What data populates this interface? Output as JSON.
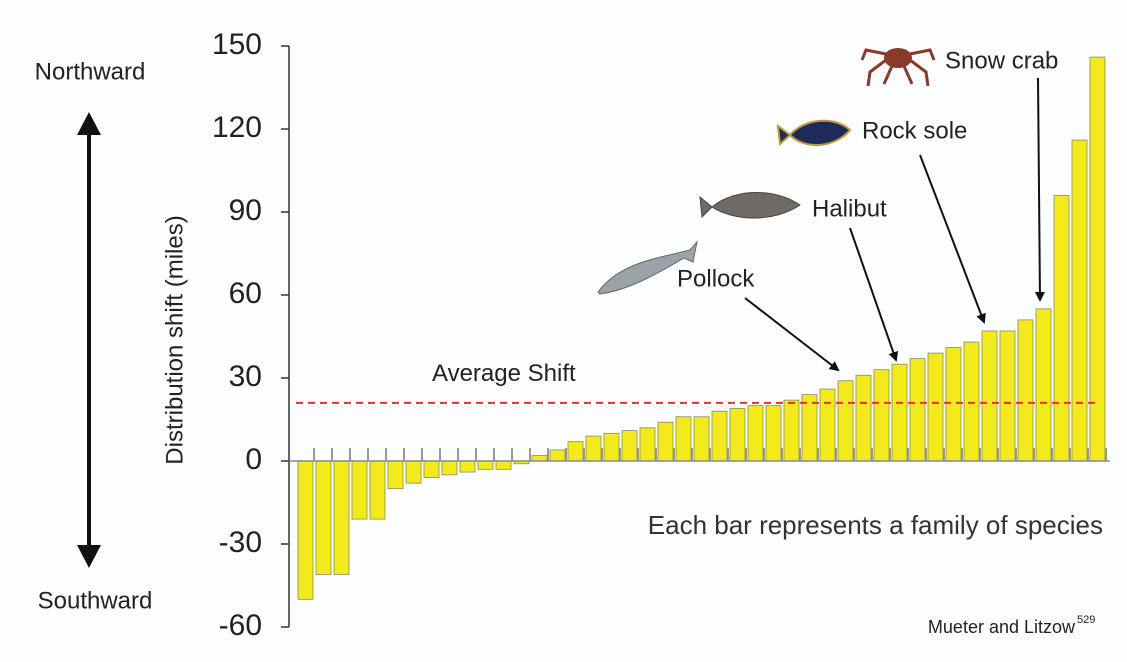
{
  "chart_data": {
    "type": "bar",
    "y_label": "Distribution shift (miles)",
    "top_label": "Northward",
    "bottom_label": "Southward",
    "note": "Each bar represents a family of species",
    "source": "Mueter and Litzow",
    "source_ref": "529",
    "average": {
      "label": "Average Shift",
      "value": 21,
      "color": "#e8302a"
    },
    "annotations": [
      "Pollock",
      "Halibut",
      "Rock sole",
      "Snow crab"
    ],
    "values": [
      -50,
      -41,
      -41,
      -21,
      -21,
      -10,
      -8,
      -6,
      -5,
      -4,
      -3,
      -3,
      -1,
      2,
      4,
      7,
      9,
      10,
      11,
      12,
      14,
      16,
      16,
      18,
      19,
      20,
      20,
      22,
      24,
      26,
      29,
      31,
      33,
      35,
      37,
      39,
      41,
      43,
      47,
      47,
      51,
      55,
      96,
      116,
      146
    ],
    "color": "#f3ea1c",
    "ylim": [
      -60,
      150
    ],
    "yticks": [
      150,
      120,
      90,
      60,
      30,
      0,
      -30,
      -60
    ]
  }
}
